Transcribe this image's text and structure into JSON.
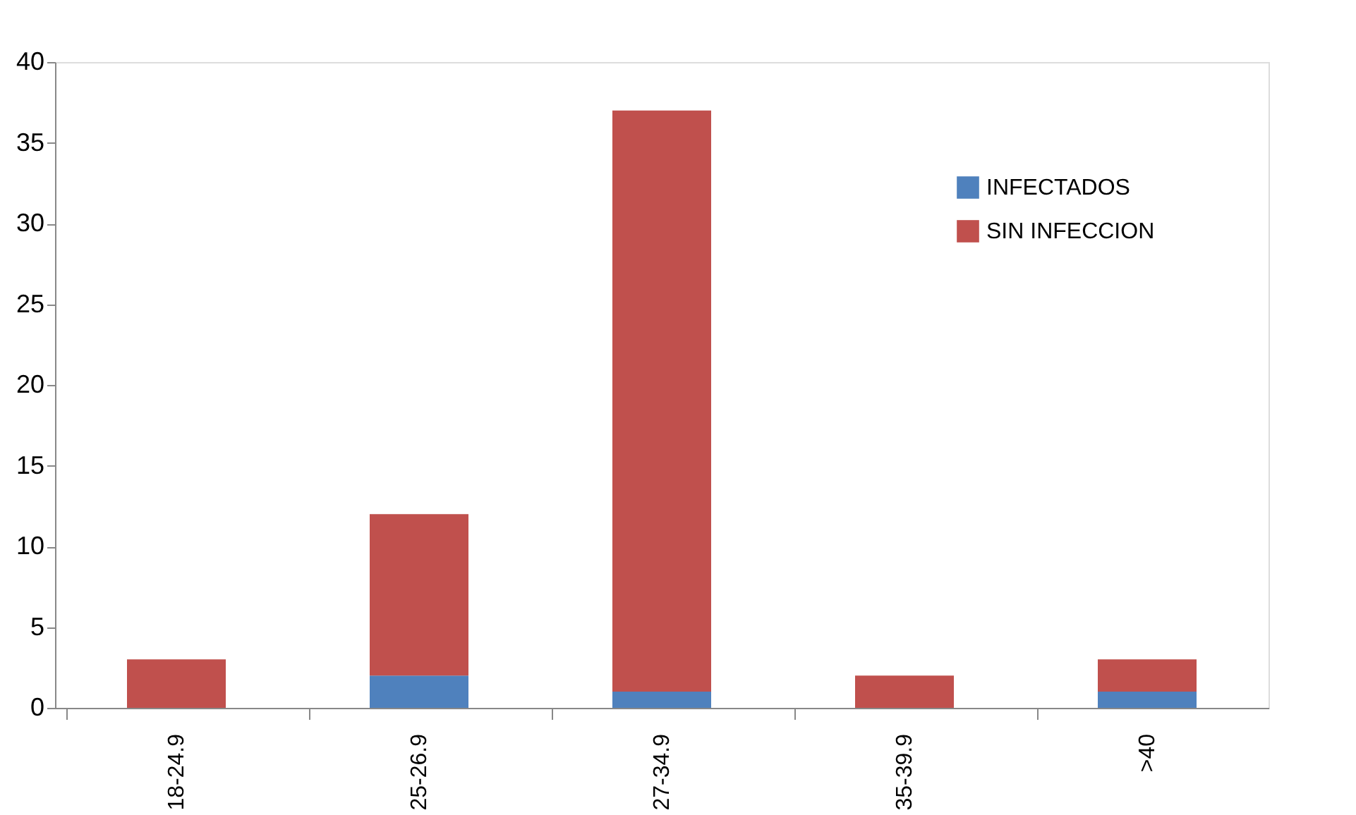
{
  "chart_data": {
    "type": "bar",
    "stacked": true,
    "categories": [
      "18-24.9",
      "25-26.9",
      "27-34.9",
      "35-39.9",
      ">40"
    ],
    "series": [
      {
        "name": "INFECTADOS",
        "color": "#4f81bd",
        "values": [
          0,
          2,
          1,
          0,
          1
        ]
      },
      {
        "name": "SIN INFECCION",
        "color": "#c0504d",
        "values": [
          3,
          10,
          36,
          2,
          2
        ]
      }
    ],
    "ylim": [
      0,
      40
    ],
    "yticks": [
      0,
      5,
      10,
      15,
      20,
      25,
      30,
      35,
      40
    ],
    "grid": false,
    "legend": "top right"
  }
}
